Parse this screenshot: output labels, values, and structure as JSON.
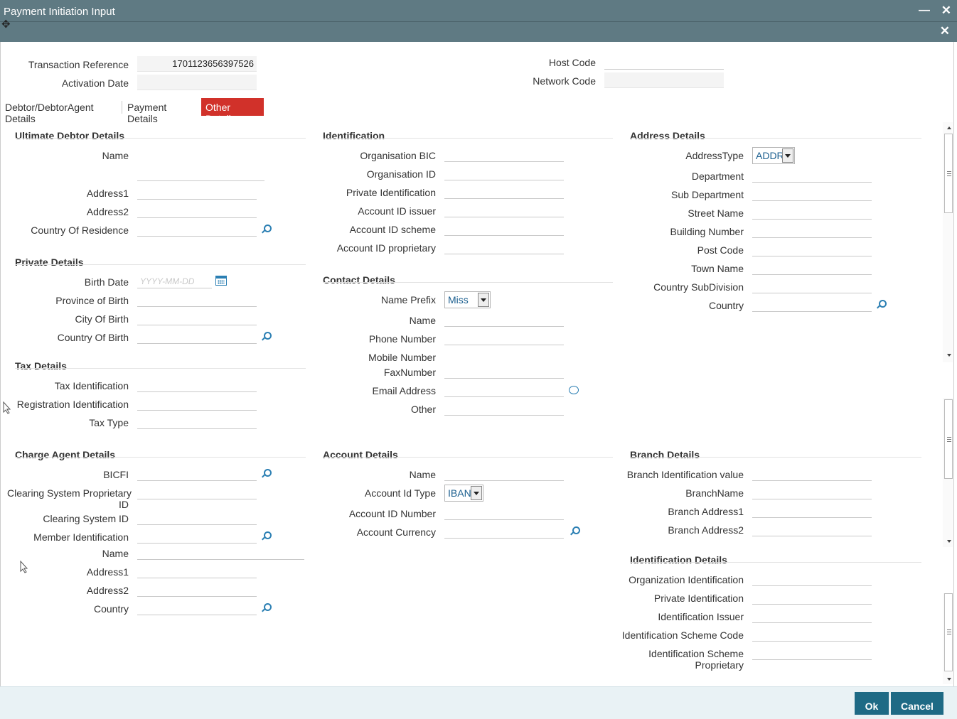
{
  "window": {
    "title": "Payment Initiation Input"
  },
  "header": {
    "txn_ref_label": "Transaction Reference",
    "txn_ref_value": "1701123656397526",
    "activation_date_label": "Activation Date",
    "host_code_label": "Host Code",
    "network_code_label": "Network Code"
  },
  "tabs": [
    {
      "label": "Debtor/DebtorAgent Details"
    },
    {
      "label": "Payment Details"
    },
    {
      "label": "Other Details",
      "active": true
    }
  ],
  "ultimate_debtor": {
    "title": "Ultimate Debtor Details",
    "name": "Name",
    "address1": "Address1",
    "address2": "Address2",
    "country_of_residence": "Country Of Residence"
  },
  "private_details": {
    "title": "Private Details",
    "birth_date": "Birth Date",
    "birth_date_placeholder": "YYYY-MM-DD",
    "province_of_birth": "Province of Birth",
    "city_of_birth": "City Of Birth",
    "country_of_birth": "Country Of Birth"
  },
  "tax_details": {
    "title": "Tax Details",
    "tax_identification": "Tax Identification",
    "registration_identification": "Registration Identification",
    "tax_type": "Tax Type"
  },
  "identification": {
    "title": "Identification",
    "organisation_bic": "Organisation BIC",
    "organisation_id": "Organisation ID",
    "private_identification": "Private Identification",
    "account_id_issuer": "Account ID issuer",
    "account_id_scheme": "Account ID scheme",
    "account_id_proprietary": "Account ID proprietary"
  },
  "contact_details": {
    "title": "Contact Details",
    "name_prefix": "Name Prefix",
    "name_prefix_value": "Miss",
    "name": "Name",
    "phone_number": "Phone Number",
    "mobile_number": "Mobile Number",
    "fax_number": "FaxNumber",
    "email_address": "Email Address",
    "other": "Other"
  },
  "address_details": {
    "title": "Address Details",
    "address_type": "AddressType",
    "address_type_value": "ADDR",
    "department": "Department",
    "sub_department": "Sub Department",
    "street_name": "Street Name",
    "building_number": "Building Number",
    "post_code": "Post Code",
    "town_name": "Town Name",
    "country_subdivision": "Country SubDivision",
    "country": "Country"
  },
  "charge_agent": {
    "title": "Charge Agent Details",
    "bicfi": "BICFI",
    "clearing_system_proprietary_1": "Clearing System Proprietary",
    "clearing_system_proprietary_2": "ID",
    "clearing_system_id": "Clearing System ID",
    "member_identification": "Member Identification",
    "name": "Name",
    "address1": "Address1",
    "address2": "Address2",
    "country": "Country"
  },
  "account_details": {
    "title": "Account Details",
    "name": "Name",
    "account_id_type": "Account Id Type",
    "account_id_type_value": "IBAN",
    "account_id_number": "Account ID Number",
    "account_currency": "Account Currency"
  },
  "branch_details": {
    "title": "Branch Details",
    "branch_identification_value": "Branch Identification value",
    "branch_name": "BranchName",
    "branch_address1": "Branch Address1",
    "branch_address2": "Branch Address2"
  },
  "identification_details": {
    "title": "Identification Details",
    "organization_identification": "Organization Identification",
    "private_identification": "Private Identification",
    "identification_issuer": "Identification Issuer",
    "identification_scheme_code": "Identification Scheme Code",
    "identification_scheme_proprietary_1": "Identification Scheme",
    "identification_scheme_proprietary_2": "Proprietary"
  },
  "footer": {
    "ok_label": "Ok",
    "cancel_label": "Cancel"
  },
  "colors": {
    "titlebar": "#5f7a83",
    "active_tab": "#d1312a",
    "button": "#1e6a85",
    "footer": "#e9f2f5",
    "icon": "#2b7fb3"
  }
}
